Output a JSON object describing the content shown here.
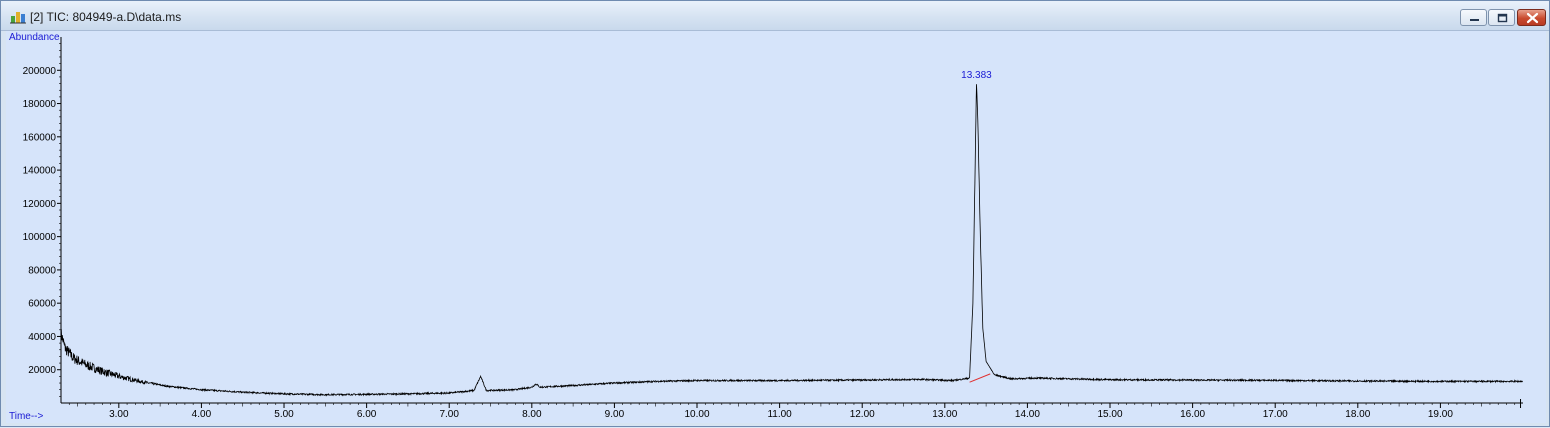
{
  "window": {
    "title": "[2] TIC: 804949-a.D\\data.ms",
    "icon": "chromatogram-app-icon",
    "controls": [
      "minimize-icon",
      "restore-icon",
      "close-icon"
    ]
  },
  "colors": {
    "plot_background": "#d6e4fa",
    "trace": "#000000",
    "axis_label": "#1a1ad4",
    "peak_label": "#1a1ad4",
    "integration_baseline": "#e03030"
  },
  "chart_data": {
    "type": "line",
    "title": "",
    "xlabel": "Time-->",
    "ylabel": "Abundance",
    "xlim": [
      2.3,
      20.0
    ],
    "ylim": [
      0,
      220000
    ],
    "x_ticks": [
      3.0,
      4.0,
      5.0,
      6.0,
      7.0,
      8.0,
      9.0,
      10.0,
      11.0,
      12.0,
      13.0,
      14.0,
      15.0,
      16.0,
      17.0,
      18.0,
      19.0
    ],
    "x_tick_labels": [
      "3.00",
      "4.00",
      "5.00",
      "6.00",
      "7.00",
      "8.00",
      "9.00",
      "10.00",
      "11.00",
      "12.00",
      "13.00",
      "14.00",
      "15.00",
      "16.00",
      "17.00",
      "18.00",
      "19.00"
    ],
    "y_ticks": [
      20000,
      40000,
      60000,
      80000,
      100000,
      120000,
      140000,
      160000,
      180000,
      200000
    ],
    "y_tick_labels": [
      "20000",
      "40000",
      "60000",
      "80000",
      "100000",
      "120000",
      "140000",
      "160000",
      "180000",
      "200000"
    ],
    "series": [
      {
        "points": [
          [
            2.3,
            42000
          ],
          [
            2.35,
            33000
          ],
          [
            2.45,
            27000
          ],
          [
            2.6,
            23000
          ],
          [
            2.8,
            19000
          ],
          [
            3.0,
            16000
          ],
          [
            3.3,
            12500
          ],
          [
            3.6,
            10000
          ],
          [
            4.0,
            8000
          ],
          [
            4.5,
            6500
          ],
          [
            5.0,
            5500
          ],
          [
            5.5,
            5000
          ],
          [
            6.0,
            5200
          ],
          [
            6.5,
            5500
          ],
          [
            7.0,
            6000
          ],
          [
            7.3,
            7500
          ],
          [
            7.38,
            16000
          ],
          [
            7.45,
            7500
          ],
          [
            7.8,
            8000
          ],
          [
            8.0,
            9500
          ],
          [
            8.05,
            11500
          ],
          [
            8.1,
            9500
          ],
          [
            8.5,
            10500
          ],
          [
            9.0,
            12000
          ],
          [
            9.5,
            13000
          ],
          [
            10.0,
            13500
          ],
          [
            11.0,
            13500
          ],
          [
            12.0,
            13800
          ],
          [
            12.7,
            14200
          ],
          [
            13.1,
            13500
          ],
          [
            13.3,
            15000
          ],
          [
            13.34,
            60000
          ],
          [
            13.37,
            150000
          ],
          [
            13.383,
            193000
          ],
          [
            13.4,
            170000
          ],
          [
            13.43,
            100000
          ],
          [
            13.46,
            45000
          ],
          [
            13.5,
            25000
          ],
          [
            13.6,
            17000
          ],
          [
            13.8,
            14500
          ],
          [
            14.1,
            15000
          ],
          [
            15.0,
            14000
          ],
          [
            16.0,
            13800
          ],
          [
            17.0,
            13600
          ],
          [
            18.0,
            13200
          ],
          [
            19.0,
            13000
          ],
          [
            20.0,
            13000
          ]
        ]
      }
    ],
    "annotations": [
      {
        "x": 13.383,
        "y": 193000,
        "label": "13.383"
      }
    ],
    "integration_baseline": [
      [
        13.3,
        12500
      ],
      [
        13.55,
        17500
      ]
    ],
    "grid": false,
    "noise": true
  }
}
